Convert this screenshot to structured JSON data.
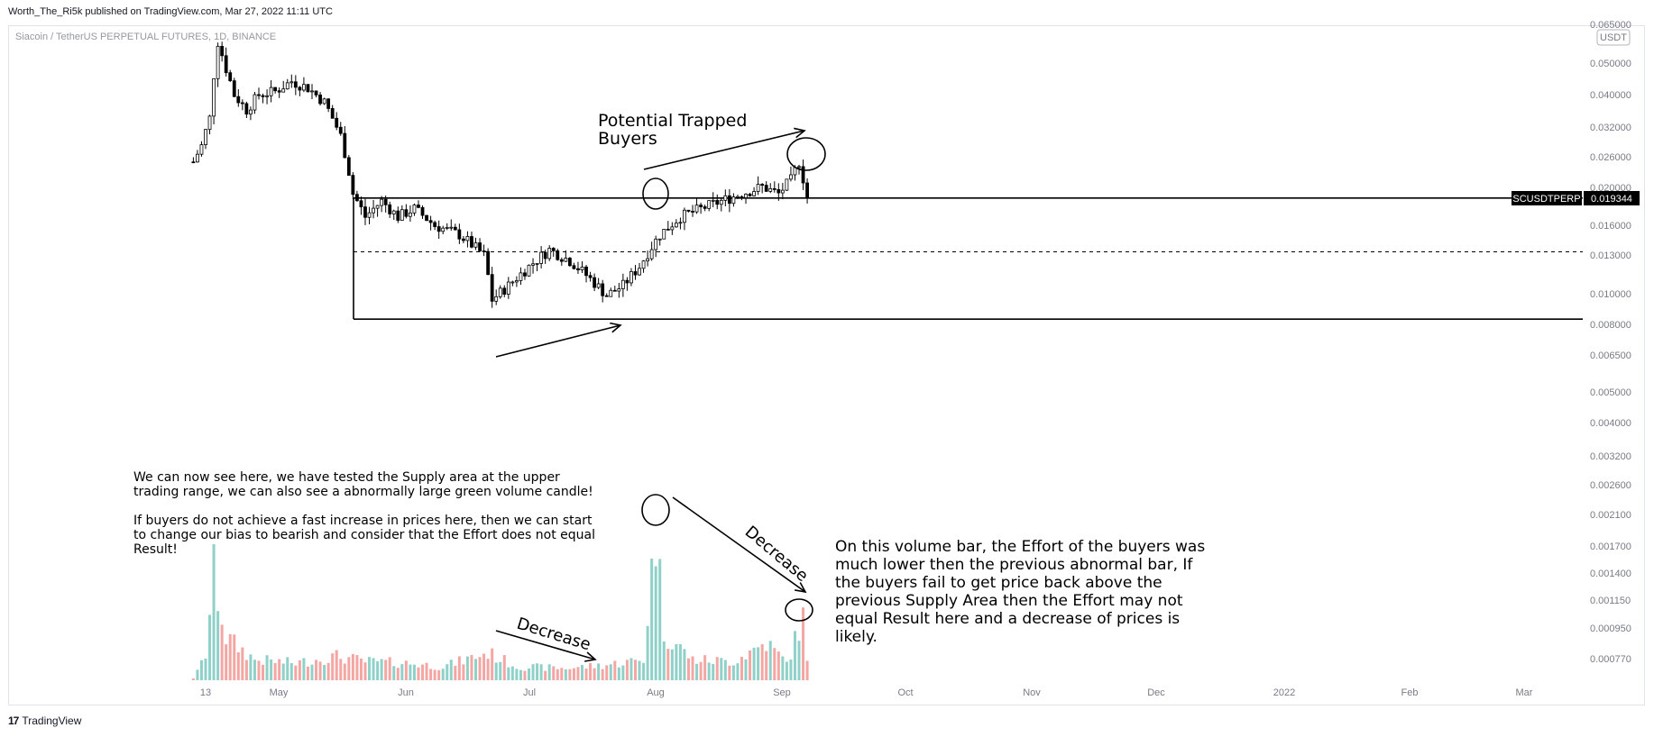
{
  "header": {
    "publisher": "Worth_The_Ri5k published on TradingView.com, Mar 27, 2022 11:11 UTC"
  },
  "footer": {
    "brand": "TradingView",
    "brand_mark": "17"
  },
  "chart_data": {
    "type": "candlestick",
    "title": "Siacoin / TetherUS PERPETUAL FUTURES, 1D, BINANCE",
    "symbol_label": "SCUSDTPERP",
    "last_price": "0.019344",
    "currency_badge": "USDT",
    "y_scale": "log",
    "y_ticks": [
      "0.050000",
      "0.040000",
      "0.032000",
      "0.026000",
      "0.020000",
      "0.016000",
      "0.013000",
      "0.010000",
      "0.008000",
      "0.006500",
      "0.005000",
      "0.004000",
      "0.003200",
      "0.002600",
      "0.002100",
      "0.001700",
      "0.001400",
      "0.001150",
      "0.000950",
      "0.000770"
    ],
    "y_top_partial": "0.065000",
    "x_ticks": [
      "13",
      "May",
      "Jun",
      "Jul",
      "Aug",
      "Sep",
      "Oct",
      "Nov",
      "Dec",
      "2022",
      "Feb",
      "Mar"
    ],
    "levels": [
      {
        "price": 0.0194,
        "style": "solid"
      },
      {
        "price": 0.0133,
        "style": "dashed"
      },
      {
        "price": 0.0083,
        "style": "solid"
      }
    ],
    "price_path": [
      [
        "2021-04-10",
        0.025
      ],
      [
        "2021-04-12",
        0.028
      ],
      [
        "2021-04-14",
        0.034
      ],
      [
        "2021-04-16",
        0.058
      ],
      [
        "2021-04-18",
        0.048
      ],
      [
        "2021-04-20",
        0.04
      ],
      [
        "2021-04-23",
        0.036
      ],
      [
        "2021-04-26",
        0.04
      ],
      [
        "2021-04-30",
        0.041
      ],
      [
        "2021-05-04",
        0.044
      ],
      [
        "2021-05-08",
        0.042
      ],
      [
        "2021-05-12",
        0.038
      ],
      [
        "2021-05-16",
        0.03
      ],
      [
        "2021-05-19",
        0.02
      ],
      [
        "2021-05-22",
        0.017
      ],
      [
        "2021-05-26",
        0.019
      ],
      [
        "2021-05-30",
        0.017
      ],
      [
        "2021-06-03",
        0.018
      ],
      [
        "2021-06-08",
        0.016
      ],
      [
        "2021-06-14",
        0.015
      ],
      [
        "2021-06-20",
        0.013
      ],
      [
        "2021-06-22",
        0.0095
      ],
      [
        "2021-06-26",
        0.0105
      ],
      [
        "2021-07-01",
        0.012
      ],
      [
        "2021-07-06",
        0.0135
      ],
      [
        "2021-07-11",
        0.0125
      ],
      [
        "2021-07-16",
        0.011
      ],
      [
        "2021-07-20",
        0.0098
      ],
      [
        "2021-07-24",
        0.0105
      ],
      [
        "2021-07-28",
        0.012
      ],
      [
        "2021-08-02",
        0.015
      ],
      [
        "2021-08-07",
        0.017
      ],
      [
        "2021-08-12",
        0.018
      ],
      [
        "2021-08-17",
        0.019
      ],
      [
        "2021-08-22",
        0.02
      ],
      [
        "2021-08-27",
        0.021
      ],
      [
        "2021-08-31",
        0.02
      ],
      [
        "2021-09-03",
        0.022
      ],
      [
        "2021-09-05",
        0.025
      ],
      [
        "2021-09-07",
        0.0195
      ]
    ],
    "volume_path": [
      [
        "2021-04-10",
        0.0
      ],
      [
        "2021-04-13",
        0.15
      ],
      [
        "2021-04-15",
        0.62
      ],
      [
        "2021-04-18",
        0.25
      ],
      [
        "2021-04-25",
        0.12
      ],
      [
        "2021-05-05",
        0.1
      ],
      [
        "2021-05-15",
        0.14
      ],
      [
        "2021-05-22",
        0.11
      ],
      [
        "2021-06-01",
        0.1
      ],
      [
        "2021-06-10",
        0.08
      ],
      [
        "2021-06-21",
        0.16
      ],
      [
        "2021-06-28",
        0.08
      ],
      [
        "2021-07-10",
        0.07
      ],
      [
        "2021-07-20",
        0.09
      ],
      [
        "2021-07-29",
        0.12
      ],
      [
        "2021-08-01",
        0.88
      ],
      [
        "2021-08-03",
        0.28
      ],
      [
        "2021-08-10",
        0.12
      ],
      [
        "2021-08-20",
        0.11
      ],
      [
        "2021-08-28",
        0.22
      ],
      [
        "2021-09-02",
        0.1
      ],
      [
        "2021-09-06",
        0.36
      ],
      [
        "2021-09-07",
        0.15
      ]
    ]
  },
  "annotations": {
    "trapped_buyers": "Potential Trapped\nBuyers",
    "decrease_1": "Decrease",
    "decrease_2": "Decrease",
    "note_left": "We can now see here, we have tested the Supply area at the upper\ntrading range, we can also see a abnormally large green volume candle!\n\nIf buyers do not achieve a fast increase in prices here, then we can start\nto change our bias to bearish and consider that the Effort does not equal\nResult!",
    "note_right": "On this volume bar, the Effort of the buyers was\nmuch lower then the previous abnormal bar, If\nthe buyers fail to get price back above the\nprevious Supply Area then the Effort may not\nequal Result here and a decrease of prices is\nlikely."
  },
  "colors": {
    "up": "#26a69a",
    "down": "#ef5350",
    "vol_up": "#8fd1c9",
    "vol_down": "#f4a6a3",
    "axis_text": "#787b86",
    "level": "#000000"
  }
}
